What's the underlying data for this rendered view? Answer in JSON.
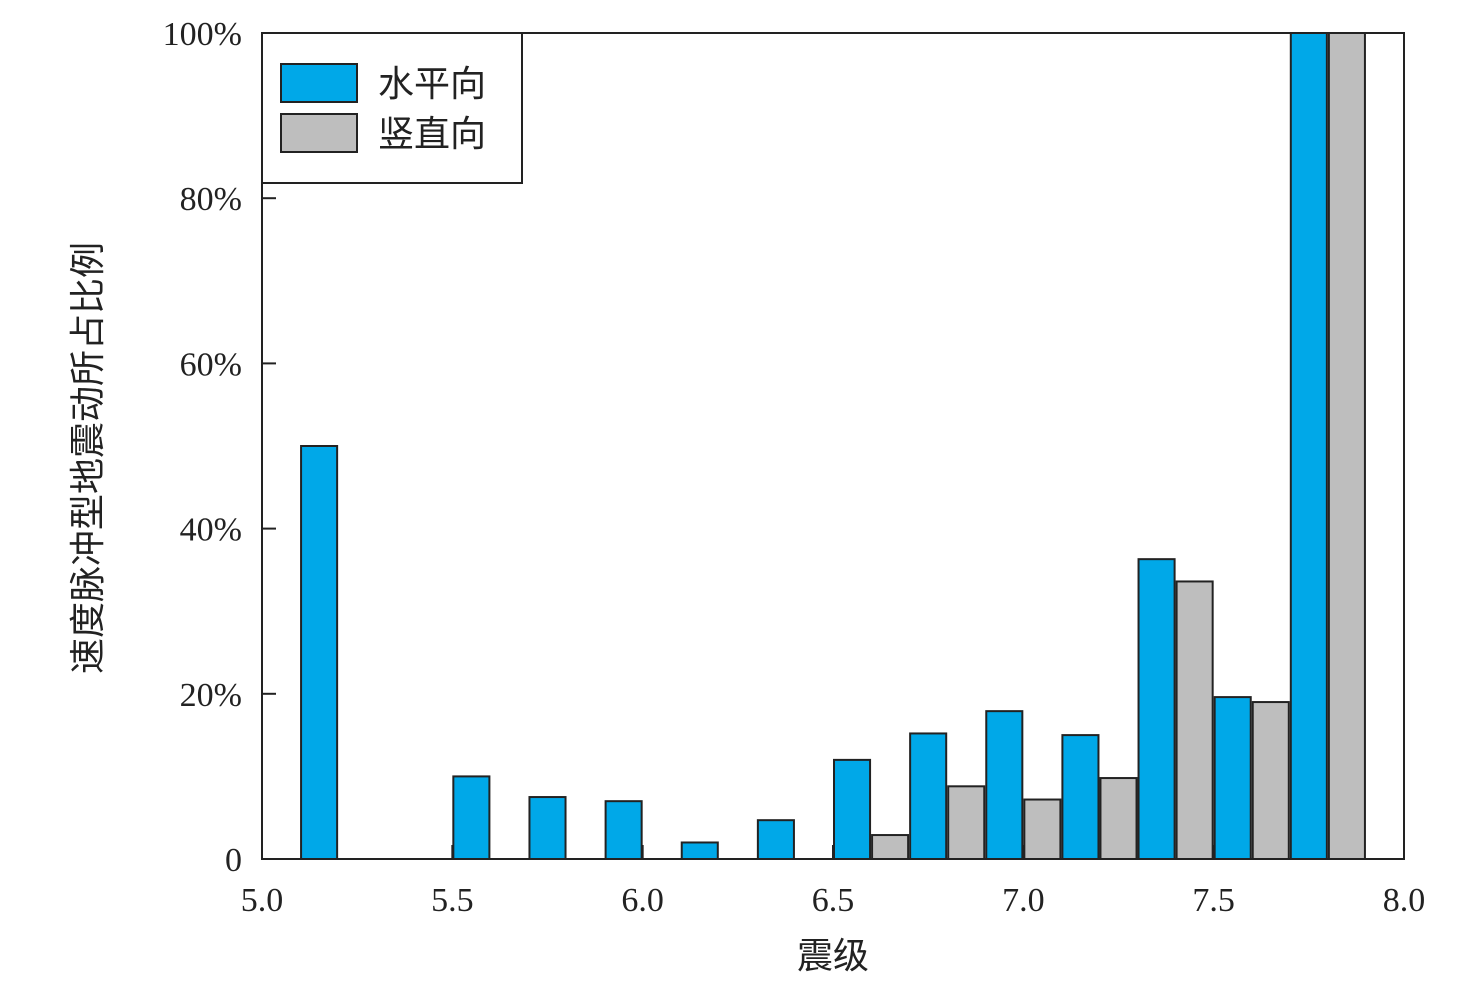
{
  "chart_data": {
    "type": "bar",
    "xlabel": "震级",
    "ylabel": "速度脉冲型地震动所占比例",
    "xlim": [
      5.0,
      8.0
    ],
    "ylim": [
      0,
      100
    ],
    "x_ticks": [
      "5.0",
      "5.5",
      "6.0",
      "6.5",
      "7.0",
      "7.5",
      "8.0"
    ],
    "y_ticks": [
      "0",
      "20%",
      "40%",
      "60%",
      "80%",
      "100%"
    ],
    "bin_width": 0.2,
    "x": [
      5.2,
      5.4,
      5.6,
      5.8,
      6.0,
      6.2,
      6.4,
      6.6,
      6.8,
      7.0,
      7.2,
      7.4,
      7.6,
      7.8
    ],
    "series": [
      {
        "name": "水平向",
        "color": "#00a8e8",
        "values": [
          50,
          0,
          10,
          7.5,
          7,
          2,
          4.7,
          12,
          15.2,
          17.9,
          15,
          36.3,
          19.6,
          100
        ]
      },
      {
        "name": "竖直向",
        "color": "#bebebe",
        "values": [
          0,
          0,
          0,
          0,
          0,
          0,
          0,
          2.9,
          8.8,
          7.2,
          9.8,
          33.6,
          19,
          100
        ]
      }
    ],
    "legend_position": "top-left",
    "grid": false
  }
}
